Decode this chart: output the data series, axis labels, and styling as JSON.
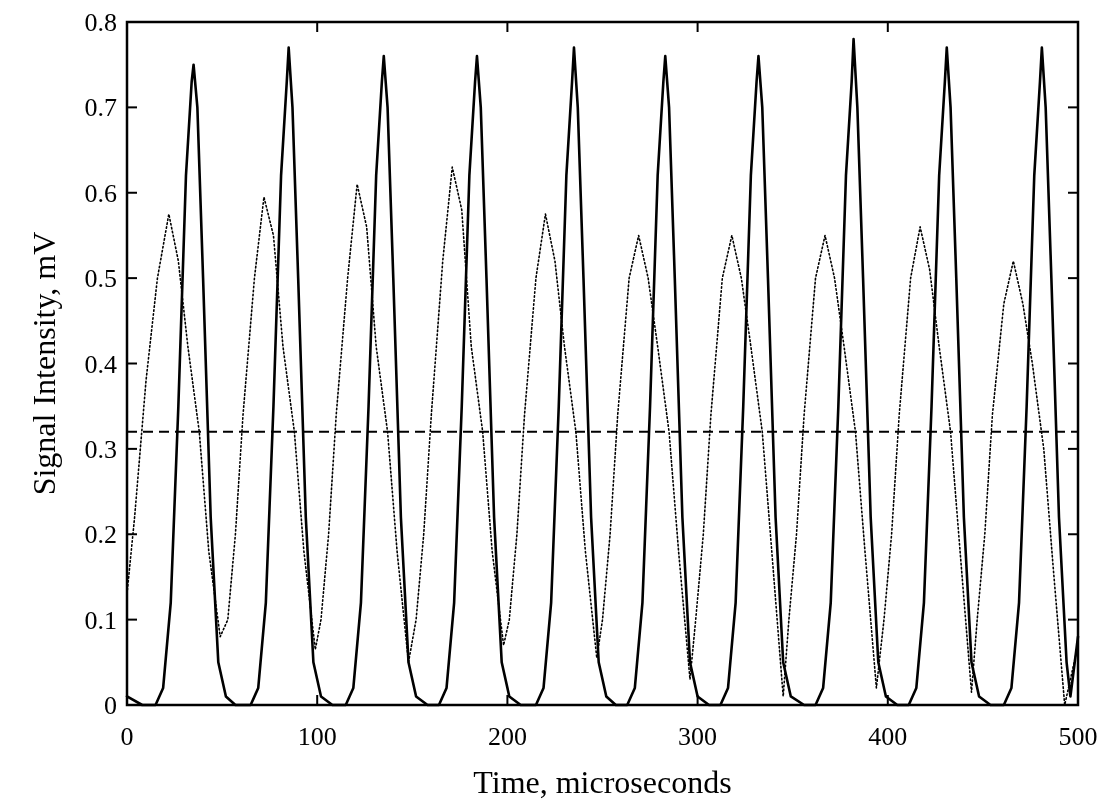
{
  "chart_data": {
    "type": "line",
    "xlabel": "Time, microseconds",
    "ylabel": "Signal Intensity, mV",
    "xlim": [
      0,
      500
    ],
    "xticks": [
      0,
      100,
      200,
      300,
      400,
      500
    ],
    "ylim": [
      0,
      0.8
    ],
    "yticks": [
      0,
      0.1,
      0.2,
      0.3,
      0.4,
      0.5,
      0.6,
      0.7,
      0.8
    ],
    "grid": false,
    "marker": "none",
    "ref_lines": [
      {
        "axis": "y",
        "value": 0.32,
        "line_style": "dashed",
        "color": "#000000"
      }
    ],
    "series": [
      {
        "color": "#000000",
        "line_style": "solid",
        "x": [
          0,
          8,
          15,
          19,
          23,
          27,
          31,
          34,
          35,
          37,
          40,
          44,
          48,
          52,
          57,
          65,
          69,
          73,
          77,
          81,
          84,
          85,
          87,
          90,
          94,
          98,
          102,
          108,
          115,
          119,
          123,
          127,
          131,
          134,
          135,
          137,
          140,
          144,
          148,
          152,
          158,
          164,
          168,
          172,
          176,
          180,
          183,
          184,
          186,
          189,
          193,
          197,
          201,
          207,
          215,
          219,
          223,
          227,
          231,
          234,
          235,
          237,
          240,
          244,
          248,
          252,
          257,
          263,
          267,
          271,
          275,
          279,
          282,
          283,
          285,
          288,
          292,
          296,
          300,
          306,
          312,
          316,
          320,
          324,
          328,
          331,
          332,
          334,
          337,
          341,
          345,
          349,
          356,
          362,
          366,
          370,
          374,
          378,
          381,
          382,
          384,
          387,
          391,
          395,
          399,
          405,
          411,
          415,
          419,
          423,
          427,
          430,
          431,
          433,
          436,
          440,
          444,
          448,
          454,
          461,
          465,
          469,
          473,
          477,
          480,
          481,
          483,
          486,
          490,
          494,
          496,
          500
        ],
        "values": [
          0.01,
          0,
          0,
          0.02,
          0.12,
          0.35,
          0.62,
          0.73,
          0.75,
          0.7,
          0.5,
          0.22,
          0.05,
          0.01,
          0,
          0,
          0.02,
          0.12,
          0.35,
          0.62,
          0.73,
          0.77,
          0.7,
          0.5,
          0.22,
          0.05,
          0.01,
          0,
          0,
          0.02,
          0.12,
          0.35,
          0.62,
          0.73,
          0.76,
          0.7,
          0.5,
          0.22,
          0.05,
          0.01,
          0,
          0,
          0.02,
          0.12,
          0.35,
          0.62,
          0.73,
          0.76,
          0.7,
          0.5,
          0.22,
          0.05,
          0.01,
          0,
          0,
          0.02,
          0.12,
          0.35,
          0.62,
          0.73,
          0.77,
          0.7,
          0.5,
          0.22,
          0.05,
          0.01,
          0,
          0,
          0.02,
          0.12,
          0.35,
          0.62,
          0.73,
          0.76,
          0.7,
          0.5,
          0.22,
          0.05,
          0.01,
          0,
          0,
          0.02,
          0.12,
          0.35,
          0.62,
          0.73,
          0.76,
          0.7,
          0.5,
          0.22,
          0.05,
          0.01,
          0,
          0,
          0.02,
          0.12,
          0.35,
          0.62,
          0.73,
          0.78,
          0.7,
          0.5,
          0.22,
          0.05,
          0.01,
          0,
          0,
          0.02,
          0.12,
          0.35,
          0.62,
          0.73,
          0.77,
          0.7,
          0.5,
          0.22,
          0.05,
          0.01,
          0,
          0,
          0.02,
          0.12,
          0.35,
          0.62,
          0.73,
          0.77,
          0.7,
          0.5,
          0.22,
          0.05,
          0.01,
          0.08
        ]
      },
      {
        "color": "#000000",
        "line_style": "dotted",
        "x": [
          0,
          4,
          10,
          16,
          22,
          27,
          32,
          38,
          43,
          49,
          53,
          57,
          61,
          67,
          72,
          77,
          82,
          88,
          93,
          99,
          102,
          106,
          110,
          116,
          121,
          126,
          131,
          137,
          142,
          148,
          152,
          156,
          160,
          166,
          171,
          176,
          181,
          187,
          192,
          198,
          201,
          205,
          209,
          215,
          220,
          225,
          230,
          236,
          241,
          247,
          250,
          254,
          258,
          264,
          269,
          274,
          279,
          285,
          290,
          296,
          299,
          303,
          307,
          313,
          318,
          323,
          328,
          334,
          339,
          345,
          348,
          352,
          356,
          362,
          367,
          372,
          377,
          383,
          388,
          394,
          398,
          402,
          406,
          412,
          417,
          422,
          427,
          433,
          438,
          444,
          447,
          451,
          455,
          461,
          466,
          471,
          476,
          482,
          487,
          493,
          500
        ],
        "values": [
          0.13,
          0.22,
          0.38,
          0.5,
          0.575,
          0.52,
          0.42,
          0.32,
          0.18,
          0.08,
          0.1,
          0.2,
          0.34,
          0.5,
          0.595,
          0.55,
          0.42,
          0.32,
          0.18,
          0.065,
          0.1,
          0.2,
          0.34,
          0.5,
          0.61,
          0.56,
          0.42,
          0.32,
          0.18,
          0.05,
          0.1,
          0.2,
          0.34,
          0.52,
          0.63,
          0.58,
          0.42,
          0.32,
          0.18,
          0.07,
          0.1,
          0.2,
          0.34,
          0.5,
          0.575,
          0.52,
          0.42,
          0.32,
          0.18,
          0.055,
          0.1,
          0.2,
          0.34,
          0.5,
          0.55,
          0.5,
          0.42,
          0.32,
          0.18,
          0.03,
          0.1,
          0.2,
          0.34,
          0.5,
          0.55,
          0.5,
          0.42,
          0.32,
          0.18,
          0.01,
          0.1,
          0.2,
          0.34,
          0.5,
          0.55,
          0.5,
          0.42,
          0.32,
          0.18,
          0.02,
          0.1,
          0.2,
          0.34,
          0.5,
          0.56,
          0.51,
          0.42,
          0.32,
          0.18,
          0.015,
          0.1,
          0.2,
          0.34,
          0.47,
          0.52,
          0.47,
          0.4,
          0.3,
          0.16,
          0,
          0.07
        ]
      }
    ]
  }
}
